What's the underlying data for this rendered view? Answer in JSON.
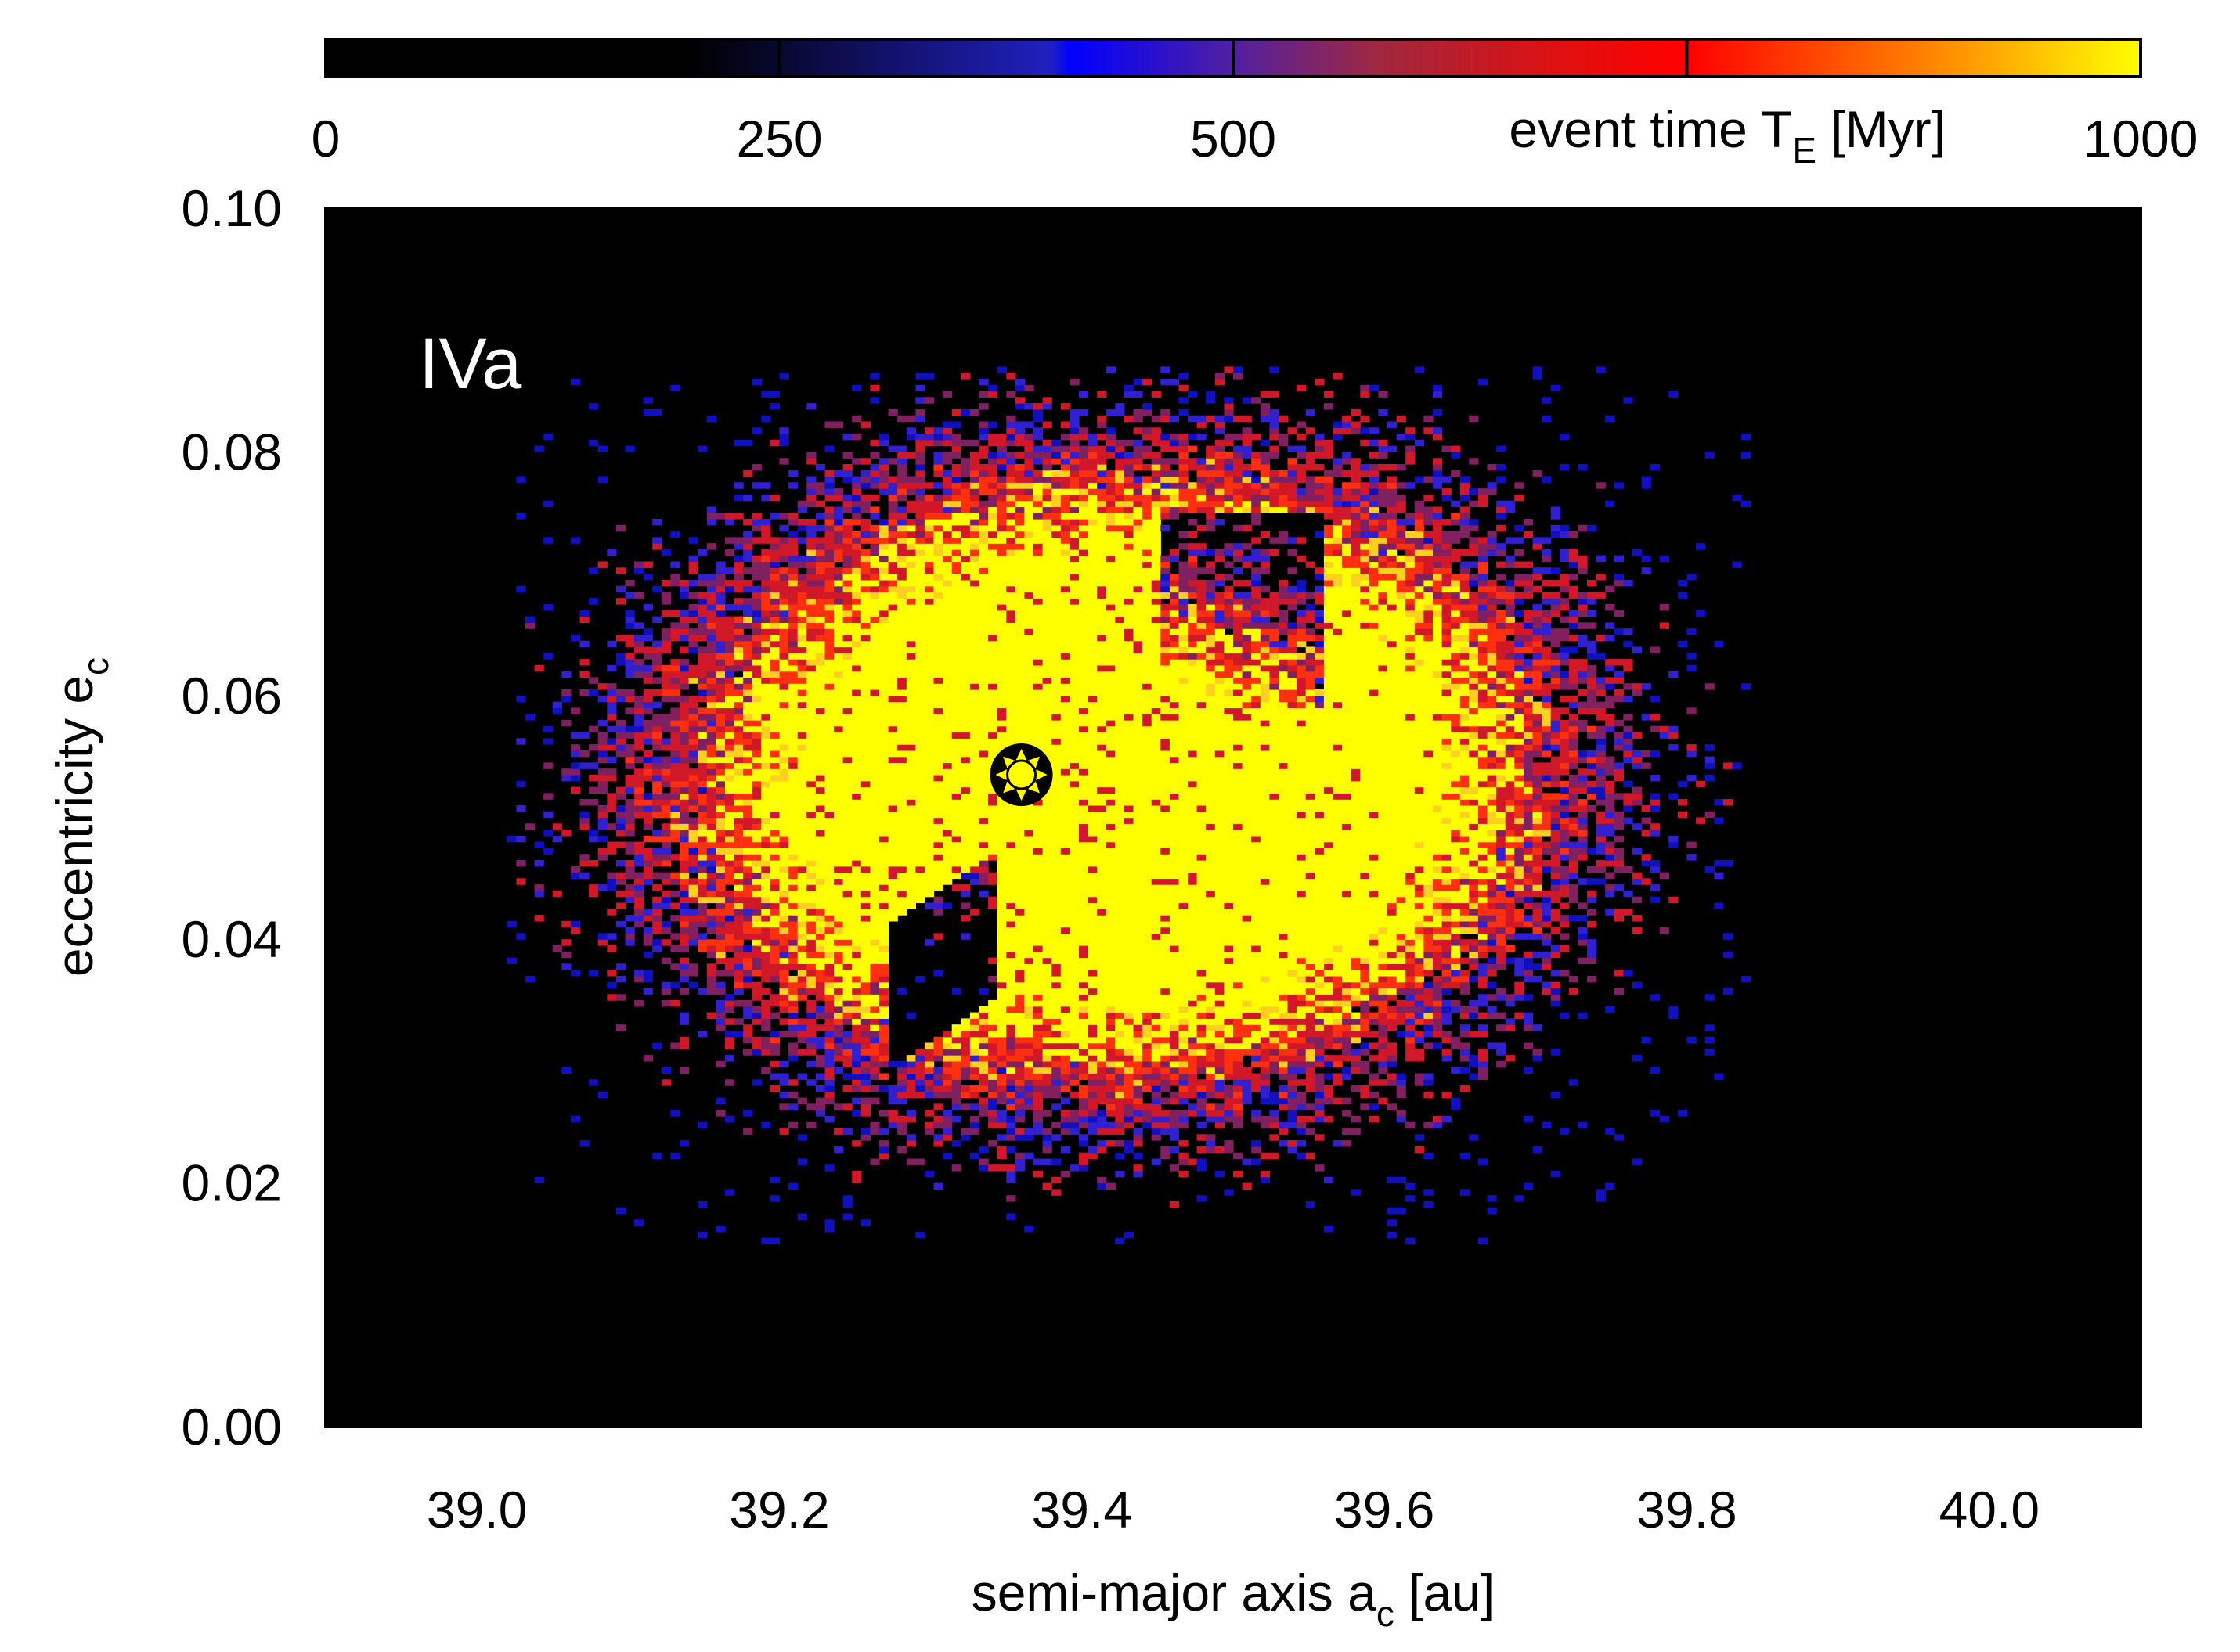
{
  "chart_data": {
    "type": "heatmap",
    "panel_label": "IVa",
    "xlabel": {
      "main": "semi-major axis a",
      "sub": "c",
      "tail": " [au]"
    },
    "ylabel": {
      "main": "eccentricity e",
      "sub": "c"
    },
    "xlim": [
      38.9,
      40.1
    ],
    "ylim": [
      0.0,
      0.1
    ],
    "x_ticks": [
      "39.0",
      "39.2",
      "39.4",
      "39.6",
      "39.8",
      "40.0"
    ],
    "y_ticks": [
      "0.00",
      "0.02",
      "0.04",
      "0.06",
      "0.08",
      "0.10"
    ],
    "grid": false,
    "colorbar": {
      "label": {
        "main": "event time T",
        "sub": "E",
        "tail": " [Myr]"
      },
      "range": [
        0,
        1000
      ],
      "ticks": [
        "0",
        "250",
        "500",
        "1000"
      ],
      "colors": [
        "#000000",
        "#0000ff",
        "#ff0000",
        "#ffff00"
      ]
    },
    "marker": {
      "symbol": "sun-icon",
      "a": 39.36,
      "e": 0.0535
    },
    "stable_region": {
      "description_value": "yellow core = event time near 1000 Myr",
      "center_a": 39.42,
      "center_e": 0.053,
      "a_extent": [
        39.12,
        39.74
      ],
      "e_extent": [
        0.021,
        0.081
      ]
    }
  }
}
